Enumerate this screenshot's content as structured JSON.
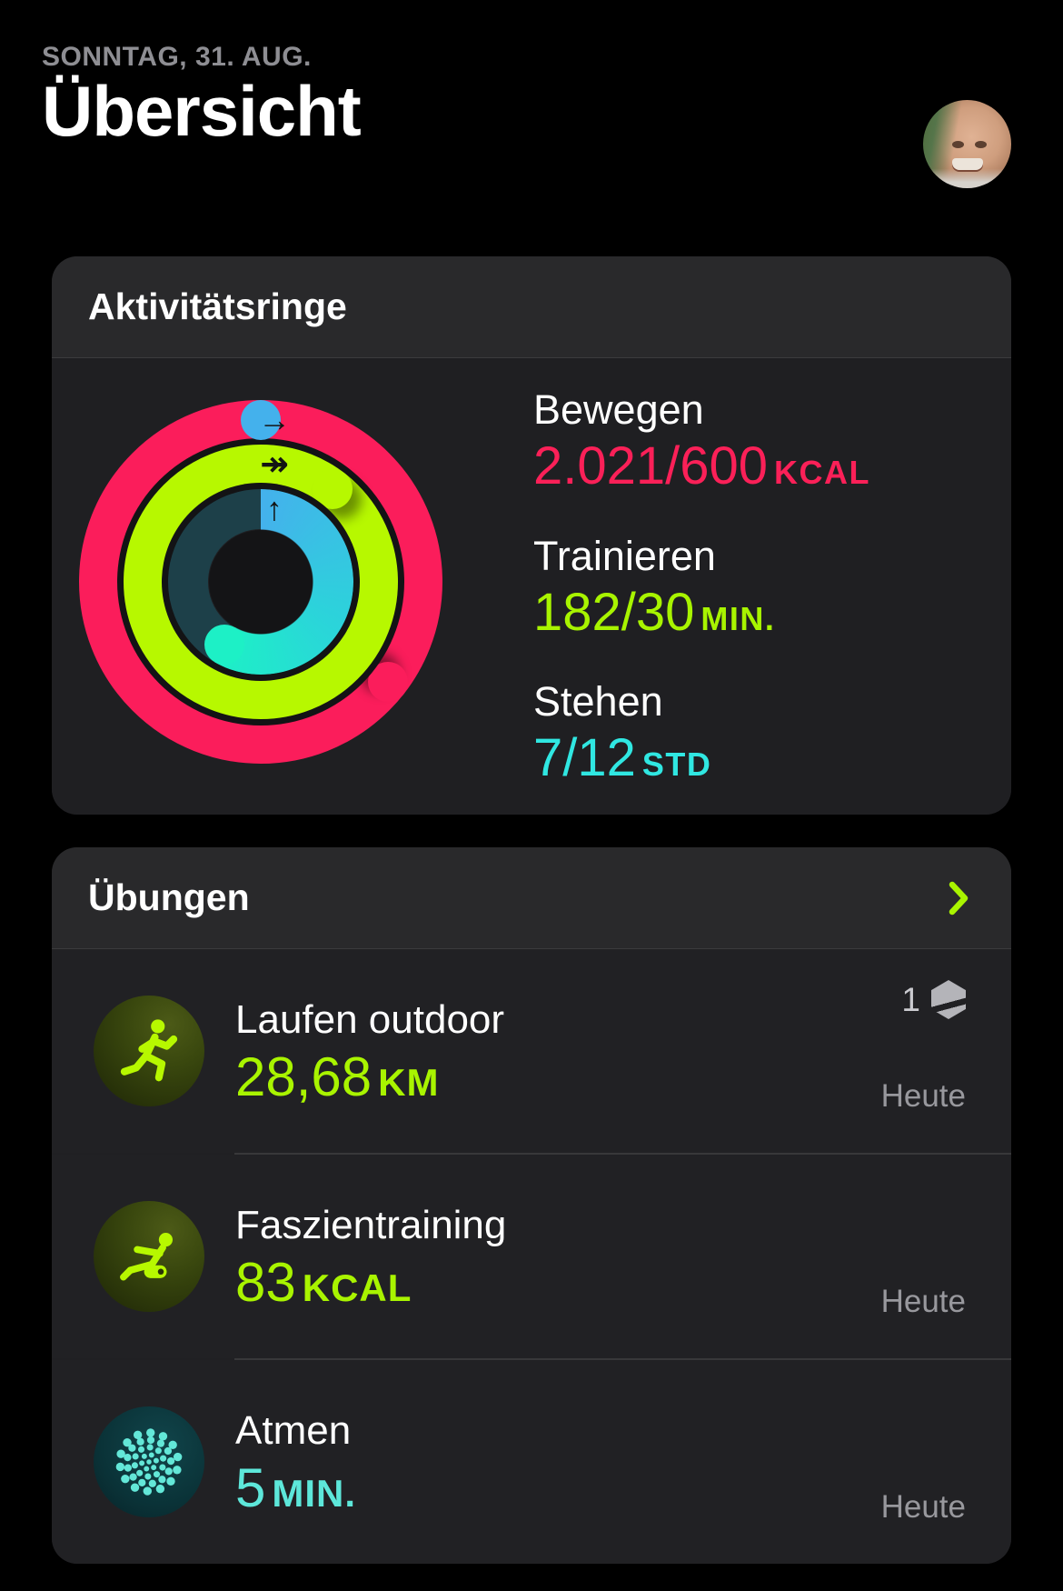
{
  "header": {
    "date": "SONNTAG, 31. AUG.",
    "title": "Übersicht"
  },
  "activity_card": {
    "title": "Aktivitätsringe",
    "rings": {
      "move_arrow": "→",
      "exercise_arrow": "↠",
      "stand_arrow": "↑"
    },
    "stats": [
      {
        "label": "Bewegen",
        "value": "2.021/600",
        "unit": "KCAL"
      },
      {
        "label": "Trainieren",
        "value": "182/30",
        "unit": "MIN."
      },
      {
        "label": "Stehen",
        "value": "7/12",
        "unit": "STD"
      }
    ]
  },
  "workouts_card": {
    "title": "Übungen",
    "rows": [
      {
        "name": "Laufen outdoor",
        "value": "28,68",
        "unit": "KM",
        "badge_count": "1",
        "when": "Heute",
        "icon": "runner-icon"
      },
      {
        "name": "Faszientraining",
        "value": "83",
        "unit": "KCAL",
        "when": "Heute",
        "icon": "foam-roller-icon"
      },
      {
        "name": "Atmen",
        "value": "5",
        "unit": "MIN.",
        "when": "Heute",
        "icon": "breathe-icon"
      }
    ]
  },
  "colors": {
    "move_ring": "#fb1d5b",
    "exercise_ring": "#b7f800",
    "stand_gradient_start": "#44b1ec",
    "stand_gradient_end": "#1df0c6",
    "stand_track": "#1d4049",
    "move_text": "#fb2058",
    "exercise_text": "#a8f400",
    "stand_text": "#30e7e2",
    "breathe_text": "#5de7da",
    "muted_text": "#98989d",
    "card_header_bg": "#29292b",
    "card_body_bg": "#202023"
  }
}
